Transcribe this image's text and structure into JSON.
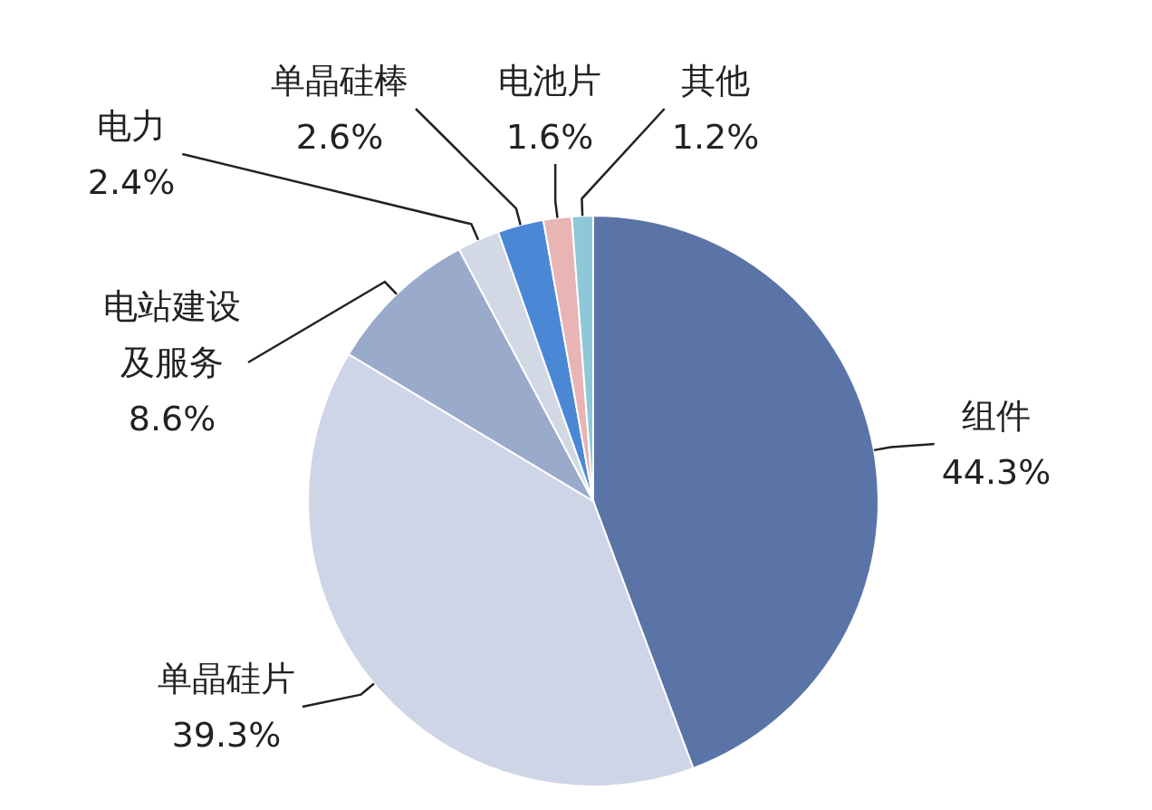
{
  "chart_data": {
    "type": "pie",
    "categories": [
      "组件",
      "单晶硅片",
      "电站建设及服务",
      "电力",
      "单晶硅棒",
      "电池片",
      "其他"
    ],
    "values": [
      44.3,
      39.3,
      8.6,
      2.4,
      2.6,
      1.6,
      1.2
    ],
    "colors": [
      "#5b74a8",
      "#ced5e6",
      "#9aaacb",
      "#d3d8e5",
      "#4a88d6",
      "#e8b4b4",
      "#8ec8d8"
    ],
    "value_labels": [
      "44.3%",
      "39.3%",
      "8.6%",
      "2.4%",
      "2.6%",
      "1.6%",
      "1.2%"
    ]
  }
}
